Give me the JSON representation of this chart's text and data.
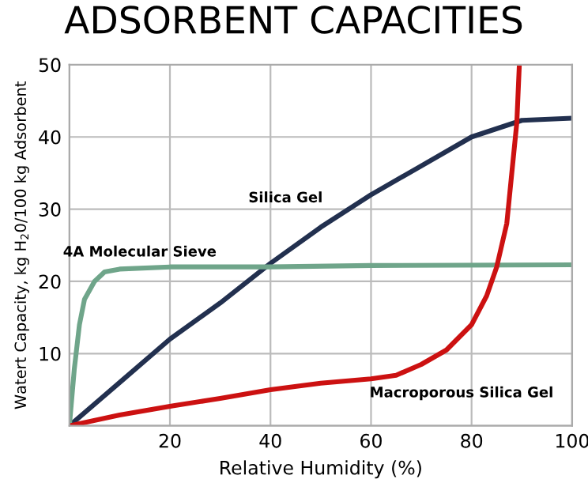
{
  "chart_data": {
    "type": "line",
    "title": "ADSORBENT CAPACITIES",
    "xlabel": "Relative Humidity (%)",
    "ylabel": "Watert Capacity, kg H$_{2}$0/100 kg Adsorbent",
    "xlim": [
      0,
      100
    ],
    "ylim": [
      0,
      50
    ],
    "xticks": [
      {
        "value": 0,
        "label": null
      },
      20,
      40,
      60,
      80,
      100
    ],
    "yticks": [
      {
        "value": 0,
        "label": null
      },
      10,
      20,
      30,
      40,
      50
    ],
    "grid": true,
    "legend": false,
    "series": [
      {
        "color": "#22304f",
        "x": [
          0,
          10,
          20,
          30,
          40,
          50,
          60,
          70,
          80,
          90,
          100
        ],
        "values": [
          0,
          6,
          12,
          17,
          22.5,
          27.5,
          32,
          36,
          40,
          42.3,
          42.6
        ]
      },
      {
        "color": "#6fa58a",
        "x": [
          0,
          1,
          2,
          3,
          5,
          7,
          10,
          20,
          40,
          60,
          100
        ],
        "values": [
          0,
          8,
          14,
          17.5,
          20,
          21.3,
          21.7,
          22,
          22,
          22.2,
          22.3
        ]
      },
      {
        "color": "#cc1111",
        "x": [
          0,
          10,
          20,
          30,
          40,
          50,
          60,
          65,
          70,
          75,
          80,
          83,
          85,
          87,
          88,
          89,
          89.5
        ],
        "values": [
          0,
          1.5,
          2.7,
          3.8,
          5,
          5.9,
          6.5,
          7,
          8.5,
          10.5,
          14,
          18,
          22,
          28,
          35,
          42,
          50
        ]
      }
    ],
    "annotations": [
      "Silica Gel",
      "4A Molecular Sieve",
      "Macroporous Silica Gel"
    ]
  }
}
